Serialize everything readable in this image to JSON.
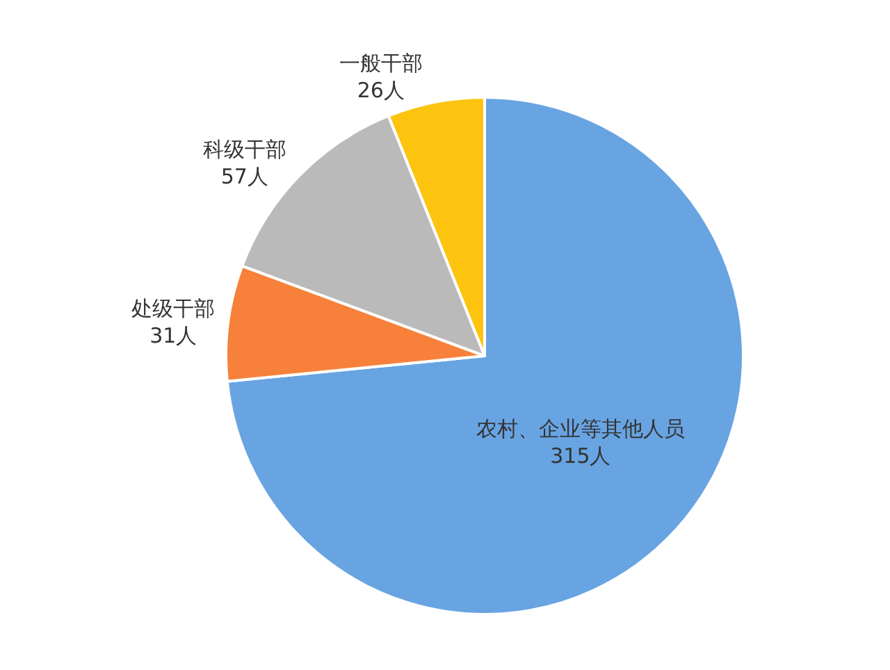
{
  "chart_data": {
    "type": "pie",
    "categories": [
      "农村、企业等其他人员",
      "处级干部",
      "科级干部",
      "一般干部"
    ],
    "values": [
      315,
      31,
      57,
      26
    ],
    "value_labels": [
      "315人",
      "31人",
      "57人",
      "26人"
    ],
    "colors": [
      "#68a4e2",
      "#f7813a",
      "#bababa",
      "#fdc40f"
    ]
  }
}
